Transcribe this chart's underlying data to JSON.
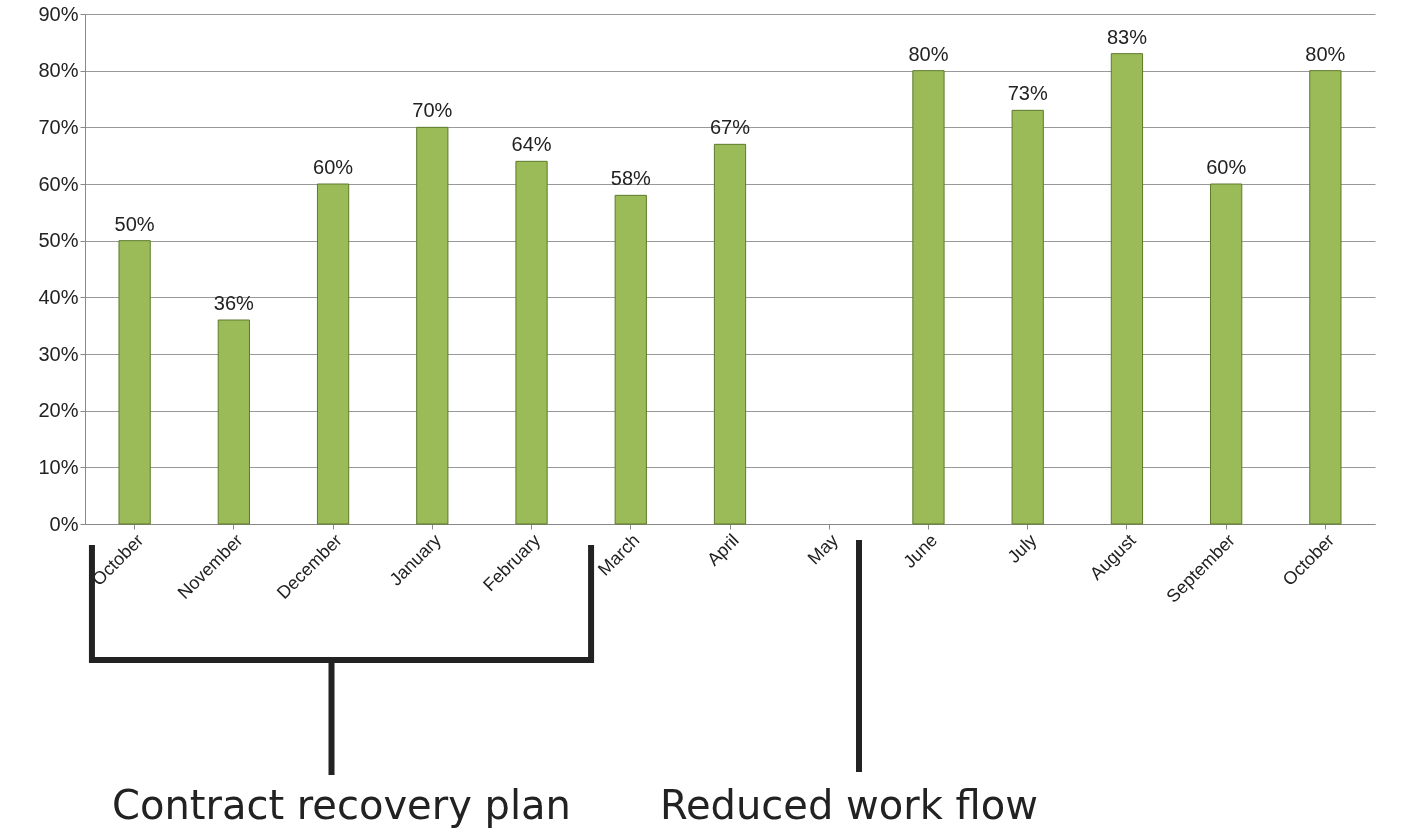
{
  "chart_data": {
    "type": "bar",
    "categories": [
      "October",
      "November",
      "December",
      "January",
      "February",
      "March",
      "April",
      "May",
      "June",
      "July",
      "August",
      "September",
      "October"
    ],
    "values": [
      50,
      36,
      60,
      70,
      64,
      58,
      67,
      null,
      80,
      73,
      83,
      60,
      80
    ],
    "value_labels": [
      "50%",
      "36%",
      "60%",
      "70%",
      "64%",
      "58%",
      "67%",
      null,
      "80%",
      "73%",
      "83%",
      "60%",
      "80%"
    ],
    "color": "#9bbb59",
    "ylim": [
      0,
      90
    ],
    "yticks": [
      {
        "value": 0,
        "label": "0%"
      },
      {
        "value": 10,
        "label": "10%"
      },
      {
        "value": 20,
        "label": "20%"
      },
      {
        "value": 30,
        "label": "30%"
      },
      {
        "value": 40,
        "label": "40%"
      },
      {
        "value": 50,
        "label": "50%"
      },
      {
        "value": 60,
        "label": "60%"
      },
      {
        "value": 70,
        "label": "70%"
      },
      {
        "value": 80,
        "label": "80%"
      },
      {
        "value": 90,
        "label": "90%"
      }
    ],
    "grid": "y",
    "annotations": [
      "Contract recovery plan",
      "Reduced work flow"
    ]
  }
}
